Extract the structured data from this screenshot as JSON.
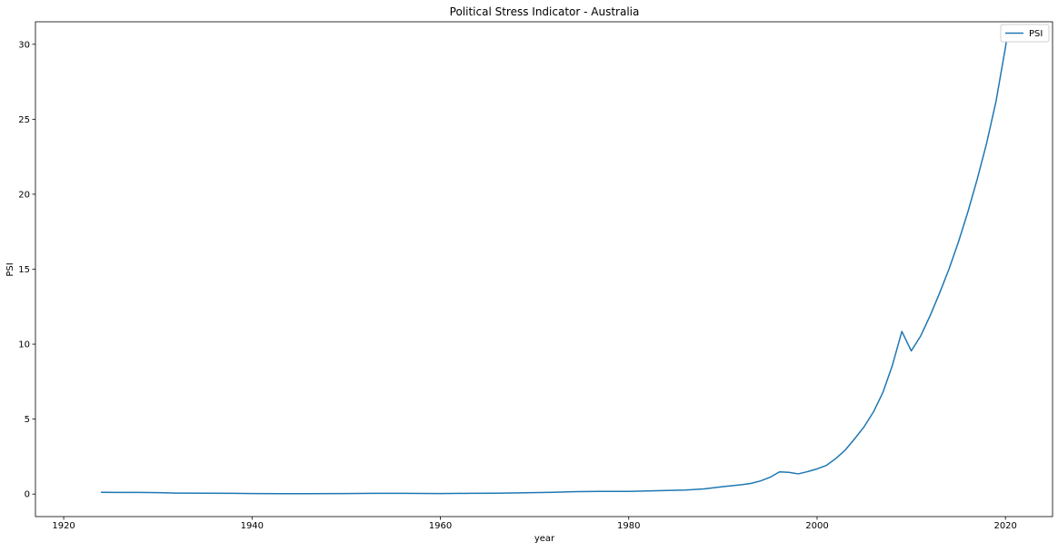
{
  "chart_data": {
    "type": "line",
    "title": "Political Stress Indicator - Australia",
    "xlabel": "year",
    "ylabel": "PSI",
    "xlim": [
      1917,
      2025
    ],
    "ylim": [
      -1.5,
      31.5
    ],
    "x_ticks": [
      1920,
      1940,
      1960,
      1980,
      2000,
      2020
    ],
    "y_ticks": [
      0,
      5,
      10,
      15,
      20,
      25,
      30
    ],
    "grid": false,
    "legend_position": "top-right",
    "series": [
      {
        "name": "PSI",
        "color": "#1f77b4",
        "points": [
          [
            1924,
            0.12
          ],
          [
            1926,
            0.11
          ],
          [
            1928,
            0.11
          ],
          [
            1930,
            0.1
          ],
          [
            1932,
            0.07
          ],
          [
            1935,
            0.06
          ],
          [
            1938,
            0.05
          ],
          [
            1940,
            0.04
          ],
          [
            1943,
            0.03
          ],
          [
            1946,
            0.03
          ],
          [
            1950,
            0.04
          ],
          [
            1953,
            0.05
          ],
          [
            1956,
            0.05
          ],
          [
            1960,
            0.04
          ],
          [
            1963,
            0.05
          ],
          [
            1966,
            0.06
          ],
          [
            1969,
            0.09
          ],
          [
            1972,
            0.12
          ],
          [
            1974,
            0.16
          ],
          [
            1977,
            0.18
          ],
          [
            1980,
            0.18
          ],
          [
            1982,
            0.21
          ],
          [
            1984,
            0.24
          ],
          [
            1986,
            0.27
          ],
          [
            1988,
            0.35
          ],
          [
            1990,
            0.5
          ],
          [
            1992,
            0.63
          ],
          [
            1993,
            0.72
          ],
          [
            1994,
            0.88
          ],
          [
            1995,
            1.12
          ],
          [
            1996,
            1.48
          ],
          [
            1997,
            1.45
          ],
          [
            1998,
            1.35
          ],
          [
            1999,
            1.5
          ],
          [
            2000,
            1.68
          ],
          [
            2001,
            1.92
          ],
          [
            2002,
            2.38
          ],
          [
            2003,
            2.95
          ],
          [
            2004,
            3.7
          ],
          [
            2005,
            4.5
          ],
          [
            2006,
            5.5
          ],
          [
            2007,
            6.8
          ],
          [
            2008,
            8.6
          ],
          [
            2009,
            10.85
          ],
          [
            2010,
            9.55
          ],
          [
            2011,
            10.55
          ],
          [
            2012,
            11.9
          ],
          [
            2013,
            13.4
          ],
          [
            2014,
            15.0
          ],
          [
            2015,
            16.8
          ],
          [
            2016,
            18.8
          ],
          [
            2017,
            21.0
          ],
          [
            2018,
            23.4
          ],
          [
            2019,
            26.2
          ],
          [
            2020,
            29.8
          ],
          [
            2020.3,
            31.0
          ]
        ]
      }
    ]
  }
}
